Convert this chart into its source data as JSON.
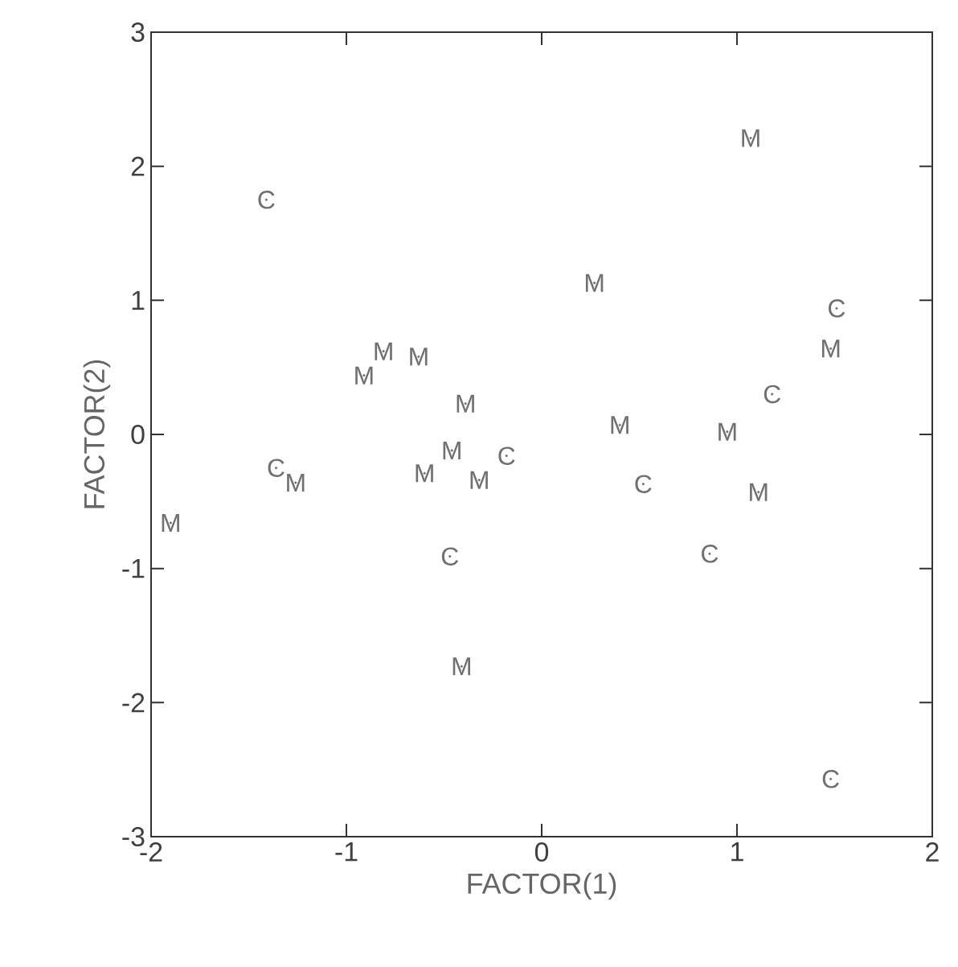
{
  "chart_data": {
    "type": "scatter",
    "xlabel": "FACTOR(1)",
    "ylabel": "FACTOR(2)",
    "xlim": [
      -2,
      2
    ],
    "ylim": [
      -3,
      3
    ],
    "xticks": [
      -2,
      -1,
      0,
      1,
      2
    ],
    "yticks": [
      -3,
      -2,
      -1,
      0,
      1,
      2,
      3
    ],
    "grid": false,
    "legend": false,
    "series": [
      {
        "name": "M",
        "color": "#707070",
        "x": [
          1.07,
          0.27,
          1.48,
          -0.81,
          -0.91,
          -0.63,
          -0.39,
          0.4,
          0.95,
          -1.26,
          -0.46,
          -0.6,
          -0.32,
          1.11,
          -1.9,
          -0.41
        ],
        "values": [
          2.21,
          1.13,
          0.64,
          0.62,
          0.44,
          0.58,
          0.23,
          0.07,
          0.02,
          -0.36,
          -0.12,
          -0.29,
          -0.34,
          -0.43,
          -0.66,
          -1.73
        ]
      },
      {
        "name": "C",
        "color": "#707070",
        "x": [
          -1.41,
          1.51,
          1.18,
          -1.36,
          -0.18,
          0.52,
          -0.47,
          0.86,
          1.48
        ],
        "values": [
          1.75,
          0.94,
          0.3,
          -0.25,
          -0.16,
          -0.37,
          -0.91,
          -0.89,
          -2.57
        ]
      }
    ]
  }
}
